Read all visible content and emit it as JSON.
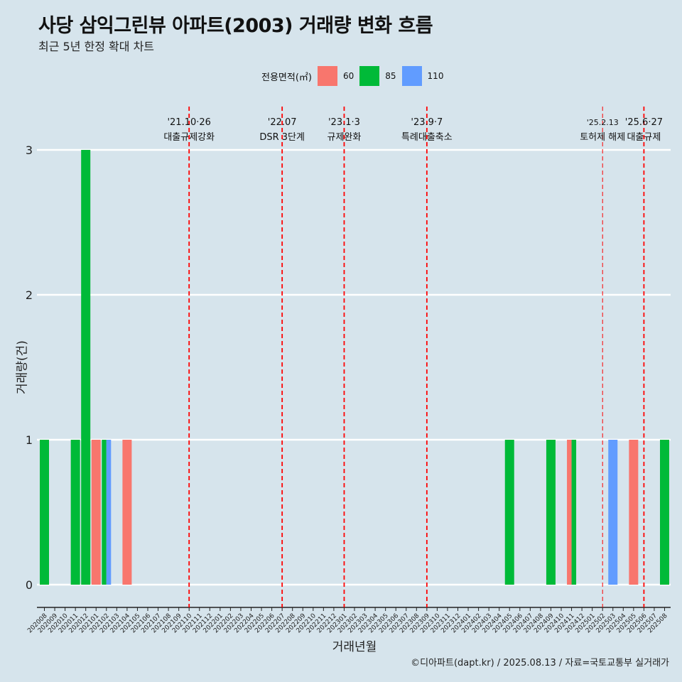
{
  "title": "사당 삼익그린뷰 아파트(2003) 거래량 변화 흐름",
  "subtitle": "최근 5년 한정 확대 차트",
  "legend": {
    "title": "전용면적(㎡)",
    "items": [
      {
        "label": "60",
        "color": "#f8766d"
      },
      {
        "label": "85",
        "color": "#00ba38"
      },
      {
        "label": "110",
        "color": "#619cff"
      }
    ]
  },
  "caption": "©디아파트(dapt.kr) / 2025.08.13 / 자료=국토교통부 실거래가",
  "chart_data": {
    "type": "bar",
    "title": "사당 삼익그린뷰 아파트(2003) 거래량 변화 흐름",
    "xlabel": "거래년월",
    "ylabel": "거래량(건)",
    "ylim": [
      0,
      3
    ],
    "yticks": [
      0,
      1,
      2,
      3
    ],
    "categories": [
      "202008",
      "202009",
      "202010",
      "202011",
      "202012",
      "202101",
      "202102",
      "202103",
      "202104",
      "202105",
      "202106",
      "202107",
      "202108",
      "202109",
      "202110",
      "202111",
      "202112",
      "202201",
      "202202",
      "202203",
      "202204",
      "202205",
      "202206",
      "202207",
      "202208",
      "202209",
      "202210",
      "202211",
      "202212",
      "202301",
      "202302",
      "202303",
      "202304",
      "202305",
      "202306",
      "202307",
      "202308",
      "202309",
      "202310",
      "202311",
      "202312",
      "202401",
      "202402",
      "202403",
      "202404",
      "202405",
      "202406",
      "202407",
      "202408",
      "202409",
      "202410",
      "202411",
      "202412",
      "202501",
      "202502",
      "202503",
      "202504",
      "202505",
      "202506",
      "202507",
      "202508"
    ],
    "bars": [
      {
        "month": "202008",
        "series": [
          "85"
        ],
        "values": [
          1
        ]
      },
      {
        "month": "202011",
        "series": [
          "85"
        ],
        "values": [
          1
        ]
      },
      {
        "month": "202012",
        "series": [
          "85"
        ],
        "values": [
          3
        ]
      },
      {
        "month": "202101",
        "series": [
          "60"
        ],
        "values": [
          1
        ]
      },
      {
        "month": "202102",
        "series": [
          "85",
          "110"
        ],
        "values": [
          1,
          1
        ]
      },
      {
        "month": "202104",
        "series": [
          "60"
        ],
        "values": [
          1
        ]
      },
      {
        "month": "202405",
        "series": [
          "85"
        ],
        "values": [
          1
        ]
      },
      {
        "month": "202409",
        "series": [
          "85"
        ],
        "values": [
          1
        ]
      },
      {
        "month": "202411",
        "series": [
          "60",
          "85"
        ],
        "values": [
          1,
          1
        ]
      },
      {
        "month": "202503",
        "series": [
          "110"
        ],
        "values": [
          1
        ]
      },
      {
        "month": "202505",
        "series": [
          "60"
        ],
        "values": [
          1
        ]
      },
      {
        "month": "202508",
        "series": [
          "85"
        ],
        "values": [
          1
        ]
      }
    ],
    "series_colors": {
      "60": "#f8766d",
      "85": "#00ba38",
      "110": "#619cff"
    },
    "events": [
      {
        "month": "202110",
        "date": "'21.10·26",
        "label": "대출규제강화",
        "line": "thick"
      },
      {
        "month": "202207",
        "date": "'22.07",
        "label": "DSR 3단계",
        "line": "thick"
      },
      {
        "month": "202301",
        "date": "'23.1·3",
        "label": "규제완화",
        "line": "thick"
      },
      {
        "month": "202309",
        "date": "'23.9·7",
        "label": "특례대출축소",
        "line": "thick"
      },
      {
        "month": "202502",
        "date": "'25.2.13",
        "label": "토허제 해제",
        "line": "thin"
      },
      {
        "month": "202506",
        "date": "'25.6·27",
        "label": "대출규제",
        "line": "thick"
      }
    ]
  }
}
